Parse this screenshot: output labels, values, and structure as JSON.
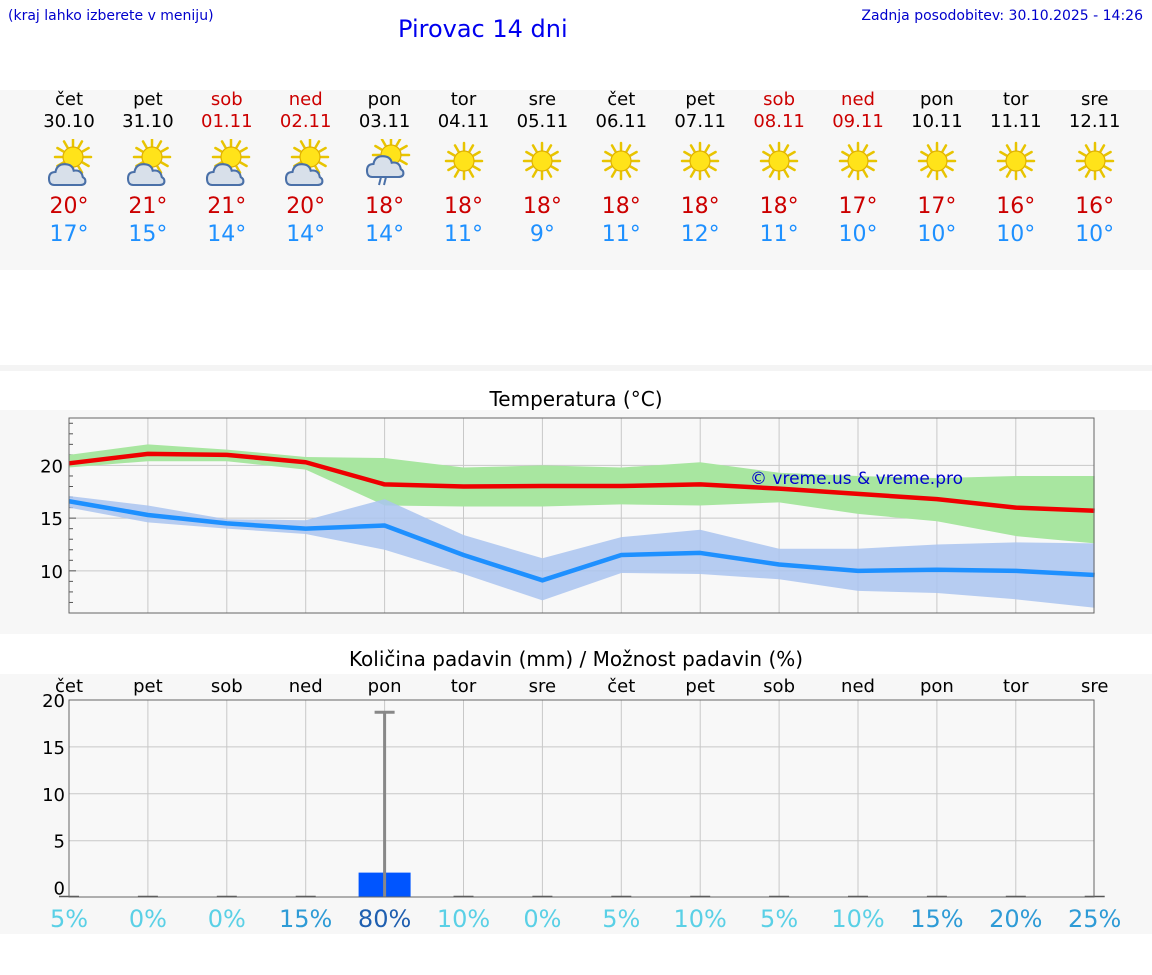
{
  "header": {
    "hint": "(kraj lahko izberete v meniju)",
    "title": "Pirovac 14 dni",
    "updated": "Zadnja posodobitev: 30.10.2025 - 14:26"
  },
  "days": [
    {
      "name": "čet",
      "date": "30.10",
      "weekend": false,
      "icon": "sun-cloud-icon",
      "tmax": "20°",
      "tmin": "17°"
    },
    {
      "name": "pet",
      "date": "31.10",
      "weekend": false,
      "icon": "sun-cloud-icon",
      "tmax": "21°",
      "tmin": "15°"
    },
    {
      "name": "sob",
      "date": "01.11",
      "weekend": true,
      "icon": "sun-cloud-icon",
      "tmax": "21°",
      "tmin": "14°"
    },
    {
      "name": "ned",
      "date": "02.11",
      "weekend": true,
      "icon": "sun-cloud-icon",
      "tmax": "20°",
      "tmin": "14°"
    },
    {
      "name": "pon",
      "date": "03.11",
      "weekend": false,
      "icon": "sun-rain-cloud-icon",
      "tmax": "18°",
      "tmin": "14°"
    },
    {
      "name": "tor",
      "date": "04.11",
      "weekend": false,
      "icon": "sun-icon",
      "tmax": "18°",
      "tmin": "11°"
    },
    {
      "name": "sre",
      "date": "05.11",
      "weekend": false,
      "icon": "sun-icon",
      "tmax": "18°",
      "tmin": "9°"
    },
    {
      "name": "čet",
      "date": "06.11",
      "weekend": false,
      "icon": "sun-icon",
      "tmax": "18°",
      "tmin": "11°"
    },
    {
      "name": "pet",
      "date": "07.11",
      "weekend": false,
      "icon": "sun-icon",
      "tmax": "18°",
      "tmin": "12°"
    },
    {
      "name": "sob",
      "date": "08.11",
      "weekend": true,
      "icon": "sun-icon",
      "tmax": "18°",
      "tmin": "11°"
    },
    {
      "name": "ned",
      "date": "09.11",
      "weekend": true,
      "icon": "sun-icon",
      "tmax": "17°",
      "tmin": "10°"
    },
    {
      "name": "pon",
      "date": "10.11",
      "weekend": false,
      "icon": "sun-icon",
      "tmax": "17°",
      "tmin": "10°"
    },
    {
      "name": "tor",
      "date": "11.11",
      "weekend": false,
      "icon": "sun-icon",
      "tmax": "16°",
      "tmin": "10°"
    },
    {
      "name": "sre",
      "date": "12.11",
      "weekend": false,
      "icon": "sun-icon",
      "tmax": "16°",
      "tmin": "10°"
    }
  ],
  "chart_data": [
    {
      "type": "line",
      "title": "Temperatura (°C)",
      "watermark": "© vreme.us & vreme.pro",
      "ylim": [
        6,
        24.5
      ],
      "yticks": [
        10,
        15,
        20
      ],
      "x": [
        0,
        1,
        2,
        3,
        4,
        5,
        6,
        7,
        8,
        9,
        10,
        11,
        12,
        13
      ],
      "series": [
        {
          "name": "max",
          "color": "#ee0000",
          "values": [
            20.2,
            21.1,
            21.0,
            20.3,
            18.2,
            18.0,
            18.05,
            18.05,
            18.2,
            17.8,
            17.3,
            16.8,
            16.0,
            15.7
          ],
          "band_low": [
            19.8,
            20.4,
            20.4,
            19.6,
            16.2,
            16.1,
            16.1,
            16.3,
            16.2,
            16.5,
            15.4,
            14.7,
            13.3,
            12.6
          ],
          "band_high": [
            21.0,
            22.0,
            21.5,
            20.8,
            20.7,
            19.8,
            20.0,
            19.8,
            20.3,
            19.3,
            19.0,
            18.8,
            19.0,
            19.0
          ],
          "band_color": "#a8e6a0"
        },
        {
          "name": "min",
          "color": "#1e90ff",
          "values": [
            16.6,
            15.3,
            14.5,
            14.0,
            14.3,
            11.5,
            9.1,
            11.5,
            11.7,
            10.6,
            10.0,
            10.1,
            10.0,
            9.6
          ],
          "band_low": [
            16.0,
            14.6,
            14.0,
            13.5,
            12.0,
            9.7,
            7.2,
            9.8,
            9.7,
            9.2,
            8.1,
            7.9,
            7.3,
            6.5
          ],
          "band_high": [
            17.1,
            16.2,
            14.9,
            14.8,
            16.8,
            13.4,
            11.2,
            13.2,
            13.9,
            12.1,
            12.1,
            12.5,
            12.7,
            12.6
          ],
          "band_color": "#aac4f0"
        }
      ]
    },
    {
      "type": "bar",
      "title": "Količina padavin (mm) / Možnost padavin (%)",
      "ylim": [
        -1,
        20
      ],
      "yticks": [
        0,
        5,
        10,
        15,
        20
      ],
      "categories": [
        "čet",
        "pet",
        "sob",
        "ned",
        "pon",
        "tor",
        "sre",
        "čet",
        "pet",
        "sob",
        "ned",
        "pon",
        "tor",
        "sre"
      ],
      "values": [
        0,
        0,
        0,
        0,
        1.6,
        0,
        0,
        0,
        0,
        0,
        0,
        0,
        0,
        0
      ],
      "error_high": [
        0,
        0,
        0,
        0,
        18.7,
        0,
        0,
        0,
        0,
        0,
        0,
        0,
        0,
        0
      ],
      "probability": [
        "5%",
        "0%",
        "0%",
        "15%",
        "80%",
        "10%",
        "0%",
        "5%",
        "10%",
        "5%",
        "10%",
        "15%",
        "20%",
        "25%"
      ],
      "probability_values": [
        5,
        0,
        0,
        15,
        80,
        10,
        0,
        5,
        10,
        5,
        10,
        15,
        20,
        25
      ]
    }
  ],
  "colors": {
    "band_bg": "#f7f7f7",
    "weekend": "#cc0000",
    "tmin": "#1e90ff",
    "bar": "#0055ff",
    "grid": "#c8c8c8"
  }
}
